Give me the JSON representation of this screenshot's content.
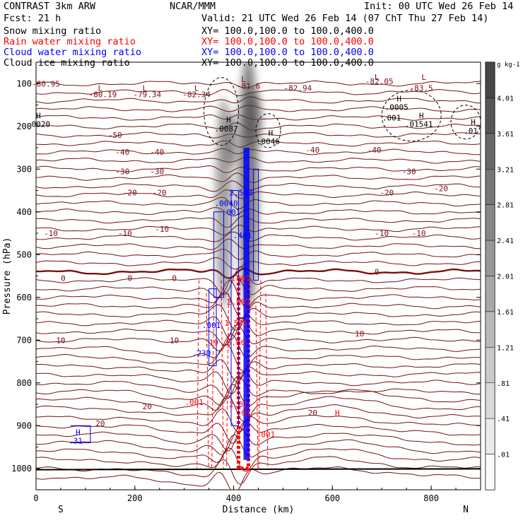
{
  "header": {
    "model": "CONTRAST  3km ARW",
    "center": "NCAR/MMM",
    "init": "Init: 00 UTC Wed 26 Feb 14",
    "fcst": "Fcst:   21 h",
    "valid": "Valid: 21 UTC Wed 26 Feb 14 (07 ChT Thu 27 Feb 14)"
  },
  "fields": [
    {
      "label": "Snow mixing ratio",
      "xy": "XY= 100.0,100.0 to 100.0,400.0",
      "color": "#000000"
    },
    {
      "label": "Rain water mixing ratio",
      "xy": "XY= 100.0,100.0 to 100.0,400.0",
      "color": "#ff0000"
    },
    {
      "label": "Cloud water mixing ratio",
      "xy": "XY= 100.0,100.0 to 100.0,400.0",
      "color": "#0000ff"
    },
    {
      "label": "Cloud ice mixing ratio",
      "xy": "XY= 100.0,100.0 to 100.0,400.0",
      "color": "#000000"
    }
  ],
  "chart_data": {
    "type": "cross-section",
    "xlabel": "Distance (km)",
    "ylabel": "Pressure (hPa)",
    "xlim": [
      0,
      900
    ],
    "ylim": [
      1050,
      50
    ],
    "xticks": [
      0,
      200,
      400,
      600,
      800
    ],
    "yticks": [
      100,
      200,
      300,
      400,
      500,
      600,
      700,
      800,
      900,
      1000
    ],
    "end_labels": {
      "left": "S",
      "right": "N"
    },
    "colorbar": {
      "units": "g kg-1",
      "levels": [
        "4.01",
        "3.61",
        "3.21",
        "2.81",
        "2.41",
        "2.01",
        "1.61",
        "1.21",
        ".81",
        ".41",
        ".01"
      ]
    },
    "temperature_isotherms": [
      {
        "label": "-80.19",
        "x": 135,
        "p": 125
      },
      {
        "label": "-79.34",
        "x": 225,
        "p": 125
      },
      {
        "label": "-82.34",
        "x": 325,
        "p": 125
      },
      {
        "label": "-81.6",
        "x": 430,
        "p": 105
      },
      {
        "label": "-82.94",
        "x": 530,
        "p": 110
      },
      {
        "label": "-82.05",
        "x": 695,
        "p": 95
      },
      {
        "label": "-83.5",
        "x": 780,
        "p": 110
      },
      {
        "label": "-80.95",
        "x": 20,
        "p": 100
      },
      {
        "label": "-50",
        "x": 160,
        "p": 220
      },
      {
        "label": "-40",
        "x": 175,
        "p": 260
      },
      {
        "label": "-40",
        "x": 245,
        "p": 260
      },
      {
        "label": "-40",
        "x": 560,
        "p": 255
      },
      {
        "label": "-40",
        "x": 685,
        "p": 255
      },
      {
        "label": "-30",
        "x": 175,
        "p": 305
      },
      {
        "label": "-30",
        "x": 245,
        "p": 305
      },
      {
        "label": "-30",
        "x": 755,
        "p": 305
      },
      {
        "label": "-20",
        "x": 190,
        "p": 355
      },
      {
        "label": "-20",
        "x": 250,
        "p": 355
      },
      {
        "label": "-20",
        "x": 710,
        "p": 355
      },
      {
        "label": "-20",
        "x": 820,
        "p": 345
      },
      {
        "label": "-10",
        "x": 30,
        "p": 450
      },
      {
        "label": "-10",
        "x": 180,
        "p": 450
      },
      {
        "label": "-10",
        "x": 255,
        "p": 440
      },
      {
        "label": "-10",
        "x": 700,
        "p": 450
      },
      {
        "label": "-10",
        "x": 775,
        "p": 450
      },
      {
        "label": "0",
        "x": 55,
        "p": 555
      },
      {
        "label": "0",
        "x": 190,
        "p": 555
      },
      {
        "label": "0",
        "x": 280,
        "p": 555
      },
      {
        "label": "0",
        "x": 690,
        "p": 540
      },
      {
        "label": "10",
        "x": 50,
        "p": 700
      },
      {
        "label": "10",
        "x": 280,
        "p": 700
      },
      {
        "label": "10",
        "x": 655,
        "p": 685
      },
      {
        "label": "20",
        "x": 225,
        "p": 855
      },
      {
        "label": "20",
        "x": 560,
        "p": 870
      },
      {
        "label": "20",
        "x": 130,
        "p": 895
      }
    ],
    "extrema": [
      {
        "mark": "L",
        "x": 130,
        "p": 110
      },
      {
        "mark": "L",
        "x": 220,
        "p": 110
      },
      {
        "mark": "L",
        "x": 325,
        "p": 110
      },
      {
        "mark": "L",
        "x": 420,
        "p": 90
      },
      {
        "mark": "L",
        "x": 690,
        "p": 85
      },
      {
        "mark": "L",
        "x": 785,
        "p": 85
      },
      {
        "mark": "H",
        "x": 5,
        "p": 175
      },
      {
        "mark": "H",
        "x": 390,
        "p": 185
      },
      {
        "mark": "H",
        "x": 475,
        "p": 215
      },
      {
        "mark": "H",
        "x": 735,
        "p": 135
      },
      {
        "mark": "H",
        "x": 780,
        "p": 175
      },
      {
        "mark": "H",
        "x": 885,
        "p": 190
      },
      {
        "mark": "H",
        "x": 610,
        "p": 870
      },
      {
        "mark": "H",
        "x": 85,
        "p": 915
      }
    ],
    "field_values": [
      {
        "label": ".0020",
        "x": 5,
        "p": 195,
        "field": "snow"
      },
      {
        "label": ".0087",
        "x": 385,
        "p": 205,
        "field": "snow"
      },
      {
        "label": ".0046",
        "x": 470,
        "p": 235,
        "field": "snow"
      },
      {
        "label": ".0005",
        "x": 730,
        "p": 155,
        "field": "snow"
      },
      {
        "label": ".001",
        "x": 720,
        "p": 180,
        "field": "snow"
      },
      {
        "label": ".01541",
        "x": 775,
        "p": 195,
        "field": "snow"
      },
      {
        "label": ".01",
        "x": 880,
        "p": 210,
        "field": "snow"
      },
      {
        "label": "2.598",
        "x": 415,
        "p": 355,
        "field": "cloud"
      },
      {
        "label": ".0040",
        "x": 385,
        "p": 380,
        "field": "cloud"
      },
      {
        "label": ".001",
        "x": 395,
        "p": 400,
        "field": "cloud"
      },
      {
        "label": ".401",
        "x": 418,
        "p": 455,
        "field": "cloud"
      },
      {
        "label": ".001",
        "x": 355,
        "p": 665,
        "field": "cloud"
      },
      {
        "label": ".230",
        "x": 335,
        "p": 730,
        "field": "cloud"
      },
      {
        "label": ".31",
        "x": 80,
        "p": 935,
        "field": "cloud"
      },
      {
        "label": ".001",
        "x": 415,
        "p": 555,
        "field": "rain"
      },
      {
        "label": "2.001",
        "x": 410,
        "p": 610,
        "field": "rain"
      },
      {
        "label": "1.501",
        "x": 405,
        "p": 660,
        "field": "rain"
      },
      {
        "label": "6.00",
        "x": 405,
        "p": 705,
        "field": "rain"
      },
      {
        "label": ".19",
        "x": 355,
        "p": 705,
        "field": "rain"
      },
      {
        "label": ".001",
        "x": 320,
        "p": 845,
        "field": "rain"
      },
      {
        "label": "2.01",
        "x": 410,
        "p": 850,
        "field": "rain"
      },
      {
        "label": ".01",
        "x": 420,
        "p": 870,
        "field": "rain"
      },
      {
        "label": ".001",
        "x": 465,
        "p": 920,
        "field": "rain"
      }
    ]
  }
}
